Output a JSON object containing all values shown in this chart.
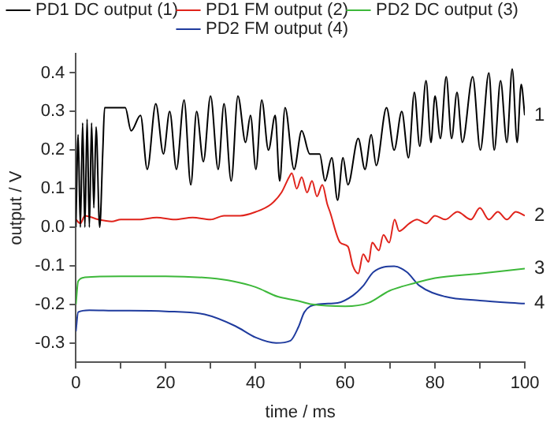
{
  "chart_data": {
    "type": "line",
    "xlabel": "time / ms",
    "ylabel": "output / V",
    "legend": "top",
    "marker": "none",
    "line_style": "solid",
    "grid": false,
    "xlim": [
      0,
      100
    ],
    "ylim": [
      -0.35,
      0.45
    ],
    "xticks": [
      0,
      {
        "value": 10,
        "label": null
      },
      20,
      {
        "value": 30,
        "label": null
      },
      40,
      {
        "value": 50,
        "label": null
      },
      60,
      {
        "value": 70,
        "label": null
      },
      80,
      {
        "value": 90,
        "label": null
      },
      100
    ],
    "yticks": [
      -0.3,
      -0.2,
      -0.1,
      {
        "value": 0,
        "label": "0.0"
      },
      0.1,
      0.2,
      0.3,
      0.4
    ],
    "annotations": [
      "1",
      "2",
      "3",
      "4"
    ],
    "series": [
      {
        "name": "PD1 DC output (1)",
        "color": "#000000",
        "x": [
          0,
          0.5,
          1,
          1.5,
          2,
          2.5,
          3,
          3.5,
          4,
          4.5,
          5.3,
          6,
          6.4,
          11,
          12.3,
          14.4,
          15.9,
          17.8,
          19.5,
          20.9,
          22.4,
          24.1,
          25.6,
          26.9,
          28.4,
          30,
          31.7,
          33,
          34.6,
          36.1,
          37.8,
          38.9,
          40.1,
          41.4,
          42.9,
          44.4,
          45.4,
          46.6,
          48.6,
          50.3,
          52.1,
          53.5,
          54.3,
          55.5,
          57,
          58.3,
          59.5,
          60.6,
          62.9,
          64.4,
          65.8,
          66.9,
          69.2,
          70.9,
          72.6,
          74.1,
          75.4,
          76.6,
          78,
          79.1,
          80,
          81.2,
          82.5,
          83.7,
          84.9,
          86.1,
          88.4,
          90.1,
          92,
          93.2,
          94.6,
          96,
          97.2,
          98.3,
          99.2,
          100
        ],
        "values": [
          0,
          0.24,
          0,
          0.27,
          0,
          0.28,
          0,
          0.27,
          0.05,
          0.26,
          0,
          0.2,
          0.31,
          0.31,
          0.25,
          0.29,
          0.15,
          0.32,
          0.19,
          0.3,
          0.15,
          0.33,
          0.11,
          0.3,
          0.17,
          0.34,
          0.15,
          0.32,
          0.12,
          0.34,
          0.22,
          0.29,
          0.15,
          0.33,
          0.2,
          0.29,
          0.12,
          0.31,
          0.15,
          0.25,
          0.19,
          0.19,
          0.19,
          0.12,
          0.18,
          0.07,
          0.18,
          0.11,
          0.23,
          0.15,
          0.24,
          0.16,
          0.31,
          0.2,
          0.3,
          0.18,
          0.35,
          0.21,
          0.38,
          0.22,
          0.34,
          0.23,
          0.39,
          0.23,
          0.35,
          0.22,
          0.39,
          0.2,
          0.4,
          0.2,
          0.38,
          0.22,
          0.41,
          0.22,
          0.37,
          0.29
        ]
      },
      {
        "name": "PD1 FM output (2)",
        "color": "#e0231b",
        "x": [
          0,
          1,
          2,
          5,
          8,
          10,
          14,
          18,
          22,
          26,
          30,
          33,
          36.6,
          40.1,
          43.5,
          45.8,
          47.5,
          48.1,
          49.2,
          50.3,
          51.5,
          52.6,
          53.7,
          54.9,
          56,
          56.6,
          58.9,
          60.6,
          61.7,
          62.9,
          64,
          65.2,
          66,
          67.5,
          68.5,
          69.8,
          71,
          72,
          74.3,
          76,
          78,
          80,
          82.3,
          85,
          88,
          90,
          92,
          94,
          96,
          98,
          100
        ],
        "values": [
          0.02,
          0.01,
          0.03,
          0.02,
          0.015,
          0.02,
          0.02,
          0.025,
          0.02,
          0.025,
          0.02,
          0.03,
          0.03,
          0.04,
          0.06,
          0.09,
          0.13,
          0.14,
          0.1,
          0.13,
          0.09,
          0.12,
          0.08,
          0.11,
          0.06,
          0.04,
          -0.04,
          -0.05,
          -0.1,
          -0.12,
          -0.07,
          -0.09,
          -0.04,
          -0.06,
          -0.02,
          -0.04,
          0.02,
          -0.01,
          0.01,
          0.02,
          0.01,
          0.03,
          0.02,
          0.04,
          0.02,
          0.05,
          0.02,
          0.04,
          0.02,
          0.04,
          0.03
        ]
      },
      {
        "name": "PD2 DC output (3)",
        "color": "#3db83a",
        "x": [
          0,
          0.5,
          2,
          10,
          20,
          30,
          35,
          40,
          45,
          49.2,
          52.6,
          60,
          65.2,
          69.8,
          75.4,
          80,
          90,
          100
        ],
        "values": [
          -0.2,
          -0.14,
          -0.13,
          -0.127,
          -0.127,
          -0.132,
          -0.14,
          -0.155,
          -0.18,
          -0.19,
          -0.2,
          -0.205,
          -0.196,
          -0.165,
          -0.145,
          -0.132,
          -0.12,
          -0.107
        ]
      },
      {
        "name": "PD2 FM output (4)",
        "color": "#1f3b9e",
        "x": [
          0,
          0.5,
          3,
          8.1,
          20,
          28.7,
          35.5,
          40.1,
          44.6,
          47.8,
          49.6,
          50.9,
          53.8,
          58.3,
          61.7,
          64,
          66.3,
          70.9,
          73.7,
          76.6,
          82.3,
          90,
          100
        ],
        "values": [
          -0.27,
          -0.22,
          -0.215,
          -0.216,
          -0.218,
          -0.226,
          -0.256,
          -0.286,
          -0.3,
          -0.294,
          -0.258,
          -0.22,
          -0.2,
          -0.196,
          -0.177,
          -0.152,
          -0.116,
          -0.101,
          -0.116,
          -0.152,
          -0.18,
          -0.19,
          -0.198
        ]
      }
    ]
  }
}
